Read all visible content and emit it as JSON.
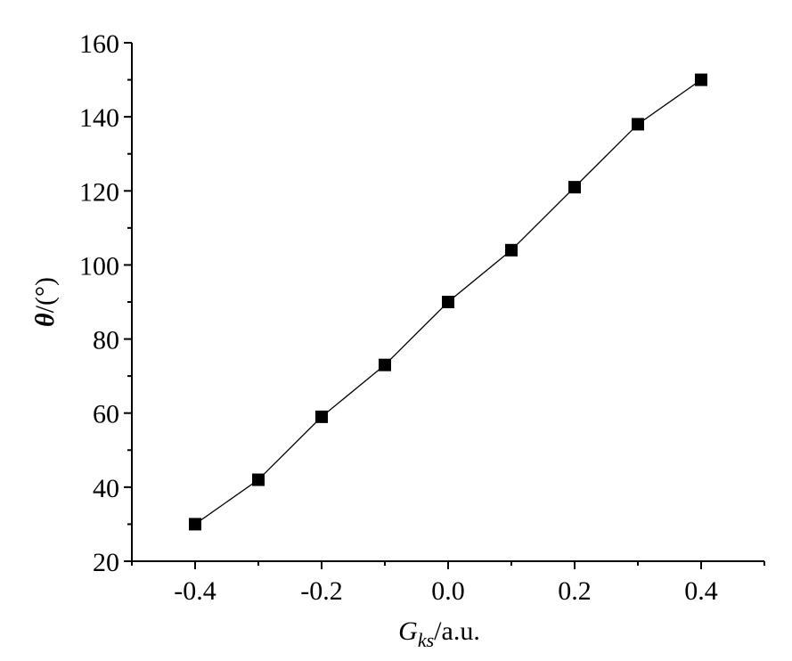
{
  "chart_data": {
    "type": "line",
    "x": [
      -0.4,
      -0.3,
      -0.2,
      -0.1,
      0.0,
      0.1,
      0.2,
      0.3,
      0.4
    ],
    "series": [
      {
        "values": [
          30,
          42,
          59,
          73,
          90,
          104,
          121,
          138,
          150
        ],
        "color": "#000000",
        "marker": "square"
      }
    ],
    "x_ticks": [
      -0.4,
      -0.2,
      0.0,
      0.2,
      0.4
    ],
    "x_tick_labels": [
      "-0.4",
      "-0.2",
      "0.0",
      "0.2",
      "0.4"
    ],
    "y_ticks": [
      20,
      40,
      60,
      80,
      100,
      120,
      140,
      160
    ],
    "y_tick_labels": [
      "20",
      "40",
      "60",
      "80",
      "100",
      "120",
      "140",
      "160"
    ],
    "xlim": [
      -0.5,
      0.5
    ],
    "ylim": [
      20,
      160
    ],
    "xlabel": {
      "main": "G",
      "sub": "ks",
      "rest": "/a.u."
    },
    "ylabel": {
      "symbol": "θ",
      "rest": "/(°)"
    },
    "grid": false,
    "legend": "none"
  }
}
